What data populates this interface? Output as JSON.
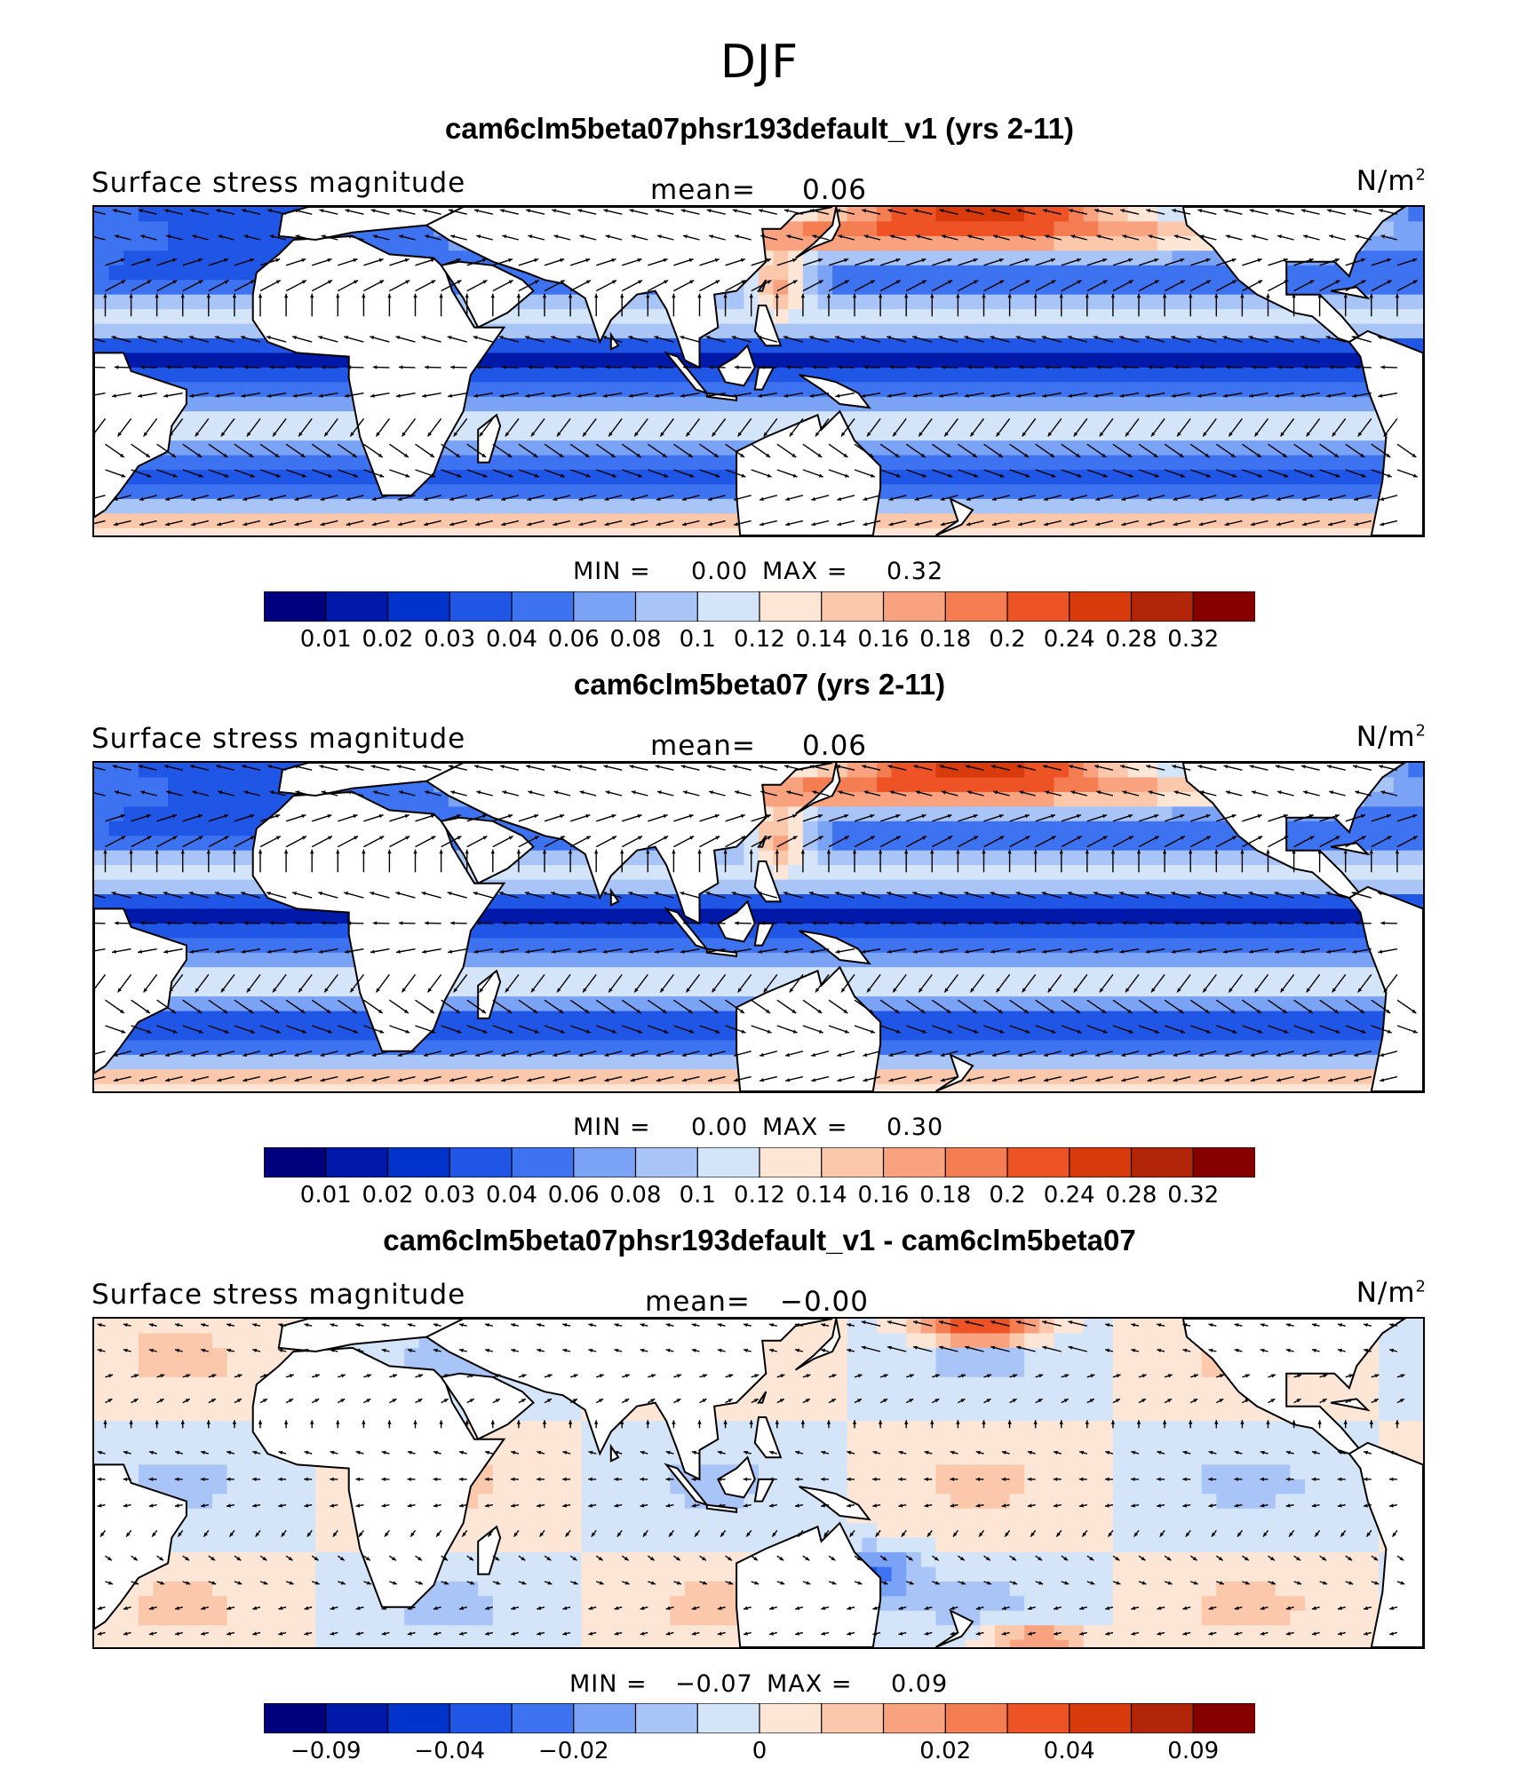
{
  "season": "DJF",
  "panels": [
    {
      "title": "cam6clm5beta07phsr193default_v1 (yrs 2-11)",
      "variable": "Surface stress magnitude",
      "mean_label": "mean=",
      "mean_value": "0.06",
      "units_base": "N/m",
      "units_exp": "2",
      "min_label": "MIN  =",
      "min_value": "0.00",
      "max_label": "MAX  =",
      "max_value": "0.32",
      "field": "magnitude"
    },
    {
      "title": "cam6clm5beta07 (yrs 2-11)",
      "variable": "Surface stress magnitude",
      "mean_label": "mean=",
      "mean_value": "0.06",
      "units_base": "N/m",
      "units_exp": "2",
      "min_label": "MIN  =",
      "min_value": "0.00",
      "max_label": "MAX  =",
      "max_value": "0.30",
      "field": "magnitude"
    },
    {
      "title": "cam6clm5beta07phsr193default_v1 - cam6clm5beta07",
      "variable": "Surface stress magnitude",
      "mean_label": "mean=",
      "mean_value": "−0.00",
      "units_base": "N/m",
      "units_exp": "2",
      "min_label": "MIN  =",
      "min_value": "−0.07",
      "max_label": "MAX  =",
      "max_value": "0.09",
      "field": "difference"
    }
  ],
  "colorbar": {
    "colors": [
      "#00007f",
      "#0019a8",
      "#0033cc",
      "#1f56e6",
      "#3d73f0",
      "#7aa2f5",
      "#a9c5f8",
      "#d4e5fa",
      "#fde6d6",
      "#fcc8ab",
      "#f8a27f",
      "#f47d52",
      "#ee5325",
      "#d83a0c",
      "#b22508",
      "#870000"
    ],
    "ticks_abs": [
      "0.01",
      "0.02",
      "0.03",
      "0.04",
      "0.06",
      "0.08",
      "0.1",
      "0.12",
      "0.14",
      "0.16",
      "0.18",
      "0.2",
      "0.24",
      "0.28",
      "0.32"
    ],
    "ticks_diff": [
      "−0.09",
      "−0.04",
      "−0.02",
      "0",
      "0.02",
      "0.04",
      "0.09"
    ]
  },
  "chart_data": [
    {
      "type": "heatmap",
      "title": "cam6clm5beta07phsr193default_v1 (yrs 2-11)",
      "suptitle": "DJF",
      "variable": "Surface stress magnitude",
      "units": "N/m2",
      "mean": 0.06,
      "min": 0.0,
      "max": 0.32,
      "x_range_lon": [
        -60,
        300
      ],
      "y_range_lat": [
        -45,
        45
      ],
      "levels": [
        0.01,
        0.02,
        0.03,
        0.04,
        0.06,
        0.08,
        0.1,
        0.12,
        0.14,
        0.16,
        0.18,
        0.2,
        0.24,
        0.28,
        0.32
      ]
    },
    {
      "type": "heatmap",
      "title": "cam6clm5beta07 (yrs 2-11)",
      "variable": "Surface stress magnitude",
      "units": "N/m2",
      "mean": 0.06,
      "min": 0.0,
      "max": 0.3,
      "x_range_lon": [
        -60,
        300
      ],
      "y_range_lat": [
        -45,
        45
      ],
      "levels": [
        0.01,
        0.02,
        0.03,
        0.04,
        0.06,
        0.08,
        0.1,
        0.12,
        0.14,
        0.16,
        0.18,
        0.2,
        0.24,
        0.28,
        0.32
      ]
    },
    {
      "type": "heatmap",
      "title": "cam6clm5beta07phsr193default_v1 - cam6clm5beta07",
      "variable": "Surface stress magnitude",
      "units": "N/m2",
      "mean": -0.0,
      "min": -0.07,
      "max": 0.09,
      "x_range_lon": [
        -60,
        300
      ],
      "y_range_lat": [
        -45,
        45
      ],
      "levels": [
        -0.09,
        -0.04,
        -0.02,
        0,
        0.02,
        0.04,
        0.09
      ]
    }
  ]
}
